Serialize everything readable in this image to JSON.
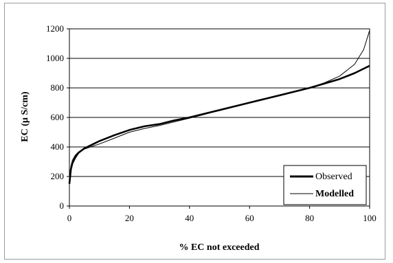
{
  "chart_data": {
    "type": "line",
    "title": "",
    "xlabel": "% EC not exceeded",
    "ylabel": "EC (µ S/cm)",
    "xlim": [
      0,
      100
    ],
    "ylim": [
      0,
      1200
    ],
    "xticks": [
      0,
      20,
      40,
      60,
      80,
      100
    ],
    "xtick_labels": [
      "0",
      "20",
      "40",
      "60",
      "80",
      "100"
    ],
    "yticks": [
      0,
      200,
      400,
      600,
      800,
      1000,
      1200
    ],
    "ytick_labels": [
      "0",
      "200",
      "400",
      "600",
      "800",
      "1000",
      "1200"
    ],
    "grid": "horizontal",
    "legend_position": "bottom-right",
    "series": [
      {
        "name": "Observed",
        "style": "thick",
        "color": "#000000",
        "x": [
          0,
          0.5,
          1,
          2,
          3,
          5,
          7,
          10,
          15,
          20,
          25,
          30,
          35,
          40,
          45,
          50,
          55,
          60,
          65,
          70,
          75,
          80,
          85,
          90,
          95,
          98,
          100
        ],
        "y": [
          150,
          250,
          290,
          330,
          360,
          390,
          410,
          440,
          480,
          515,
          540,
          555,
          580,
          600,
          625,
          650,
          675,
          700,
          725,
          750,
          775,
          800,
          830,
          860,
          900,
          930,
          950
        ]
      },
      {
        "name": "Modelled",
        "style": "thin",
        "color": "#000000",
        "x": [
          0,
          0.5,
          1,
          2,
          3,
          5,
          7,
          10,
          15,
          20,
          25,
          30,
          35,
          40,
          45,
          50,
          55,
          60,
          65,
          70,
          75,
          80,
          85,
          90,
          95,
          98,
          100
        ],
        "y": [
          200,
          270,
          310,
          345,
          365,
          385,
          400,
          420,
          460,
          500,
          525,
          545,
          570,
          595,
          620,
          648,
          672,
          698,
          722,
          748,
          775,
          800,
          835,
          880,
          960,
          1060,
          1190
        ]
      }
    ]
  }
}
